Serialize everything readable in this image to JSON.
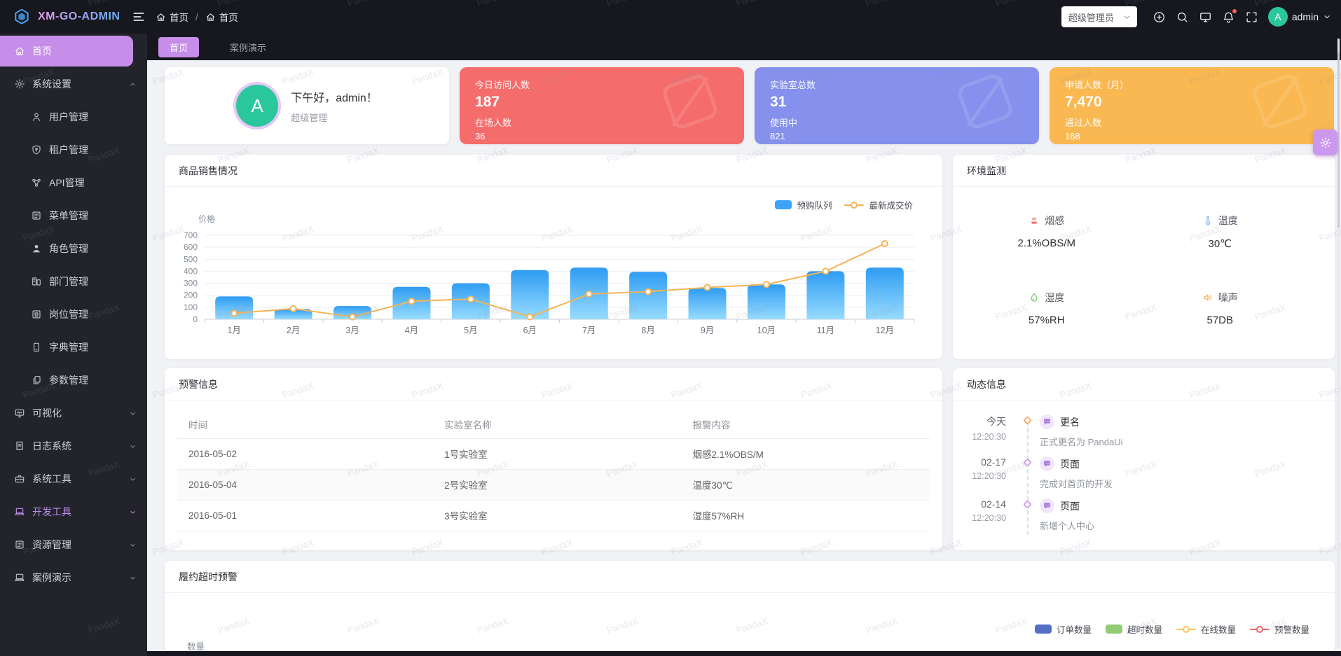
{
  "navbar": {
    "logo_text": "XM-GO-ADMIN",
    "breadcrumb": [
      "首页",
      "首页"
    ],
    "breadcrumb_separator": "/",
    "role_select": {
      "value": "超级管理员"
    },
    "username": "admin",
    "avatar_letter": "A",
    "bell_has_badge": true
  },
  "sidebar": {
    "items": [
      {
        "label": "首页",
        "icon": "home-icon",
        "active": true
      },
      {
        "label": "系统设置",
        "icon": "gear-icon",
        "expanded": true,
        "children": [
          {
            "label": "用户管理",
            "icon": "user-icon"
          },
          {
            "label": "租户管理",
            "icon": "shield-icon"
          },
          {
            "label": "API管理",
            "icon": "nodes-icon"
          },
          {
            "label": "菜单管理",
            "icon": "menu-list-icon"
          },
          {
            "label": "角色管理",
            "icon": "person-filled-icon"
          },
          {
            "label": "部门管理",
            "icon": "department-icon"
          },
          {
            "label": "岗位管理",
            "icon": "badge-icon"
          },
          {
            "label": "字典管理",
            "icon": "tablet-icon"
          },
          {
            "label": "参数管理",
            "icon": "copy-doc-icon"
          }
        ]
      },
      {
        "label": "可视化",
        "icon": "monitor-wave-icon",
        "collapsed": true
      },
      {
        "label": "日志系统",
        "icon": "document-icon",
        "collapsed": true
      },
      {
        "label": "系统工具",
        "icon": "briefcase-icon",
        "collapsed": true
      },
      {
        "label": "开发工具",
        "icon": "laptop-icon",
        "collapsed": true,
        "highlight": true
      },
      {
        "label": "资源管理",
        "icon": "menu-list-icon",
        "collapsed": true
      },
      {
        "label": "案例演示",
        "icon": "laptop-icon",
        "collapsed": true
      }
    ]
  },
  "tabs": [
    {
      "label": "首页",
      "active": true
    },
    {
      "label": "案例演示",
      "active": false
    }
  ],
  "welcome": {
    "avatar_letter": "A",
    "greeting": "下午好，admin！",
    "role": "超级管理"
  },
  "stat_cards": [
    {
      "label_top": "今日访问人数",
      "value_top": "187",
      "label_bottom": "在场人数",
      "value_bottom": "36",
      "bg": "#f56c6c"
    },
    {
      "label_top": "实验室总数",
      "value_top": "31",
      "label_bottom": "使用中",
      "value_bottom": "821",
      "bg": "#8591ed"
    },
    {
      "label_top": "申请人数（月）",
      "value_top": "7,470",
      "label_bottom": "通过人数",
      "value_bottom": "168",
      "bg": "#f9b851"
    }
  ],
  "panels": {
    "sales_title": "商品销售情况",
    "env_title": "环境监测",
    "alerts_title": "预警信息",
    "activity_title": "动态信息",
    "bottom_title": "履约超时预警"
  },
  "env_sensors": [
    {
      "label": "烟感",
      "value": "2.1%OBS/M",
      "icon": "smoke-sensor-icon",
      "color": "#f56c6c"
    },
    {
      "label": "温度",
      "value": "30℃",
      "icon": "thermometer-icon",
      "color": "#7db8f5"
    },
    {
      "label": "湿度",
      "value": "57%RH",
      "icon": "humidity-icon",
      "color": "#6fc764"
    },
    {
      "label": "噪声",
      "value": "57DB",
      "icon": "speaker-icon",
      "color": "#f2b04e"
    }
  ],
  "alerts_table": {
    "columns": [
      "时间",
      "实验室名称",
      "报警内容"
    ],
    "rows": [
      [
        "2016-05-02",
        "1号实验室",
        "烟感2.1%OBS/M"
      ],
      [
        "2016-05-04",
        "2号实验室",
        "温度30℃"
      ],
      [
        "2016-05-01",
        "3号实验室",
        "湿度57%RH"
      ]
    ]
  },
  "activity": [
    {
      "date": "今天",
      "time": "12:20:30",
      "tag": "更名",
      "desc": "正式更名为 PandaUi",
      "marker_color": "#f3b277"
    },
    {
      "date": "02-17",
      "time": "12:20:30",
      "tag": "页面",
      "desc": "完成对首页的开发",
      "marker_color": "#cfa3ef"
    },
    {
      "date": "02-14",
      "time": "12:20:30",
      "tag": "页面",
      "desc": "新增个人中心",
      "marker_color": "#cfa3ef"
    }
  ],
  "chart_data": [
    {
      "type": "bar",
      "title": "商品销售情况",
      "categories": [
        "1月",
        "2月",
        "3月",
        "4月",
        "5月",
        "6月",
        "7月",
        "8月",
        "9月",
        "10月",
        "11月",
        "12月"
      ],
      "series": [
        {
          "name": "预购队列",
          "type": "bar",
          "color": "#3ba3f8",
          "values": [
            190,
            85,
            110,
            270,
            300,
            410,
            430,
            395,
            260,
            290,
            400,
            430
          ]
        },
        {
          "name": "最新成交价",
          "type": "line",
          "color": "#f6b355",
          "values": [
            50,
            88,
            20,
            150,
            168,
            20,
            210,
            230,
            265,
            290,
            400,
            630
          ]
        }
      ],
      "ylabel": "价格",
      "ylim": [
        0,
        700
      ],
      "ytick_step": 100,
      "grid": true,
      "legend_position": "top-right"
    },
    {
      "type": "mixed",
      "title": "履约超时预警",
      "ylabel": "数量",
      "legend": [
        {
          "name": "订单数量",
          "swatch": "bar",
          "color": "#5470c6"
        },
        {
          "name": "超时数量",
          "swatch": "bar",
          "color": "#91cc75"
        },
        {
          "name": "在线数量",
          "swatch": "line",
          "color": "#fac858"
        },
        {
          "name": "预警数量",
          "swatch": "line",
          "color": "#ee6666"
        }
      ]
    }
  ],
  "watermark": "PandaX",
  "theme": {
    "primary": "#c68ee9",
    "navbar_bg": "#17181f",
    "sidebar_bg": "#22232b",
    "content_bg": "#f1f2f6",
    "bar_gradient_top": "#2f9cf3",
    "bar_gradient_bottom": "#97dcff"
  }
}
